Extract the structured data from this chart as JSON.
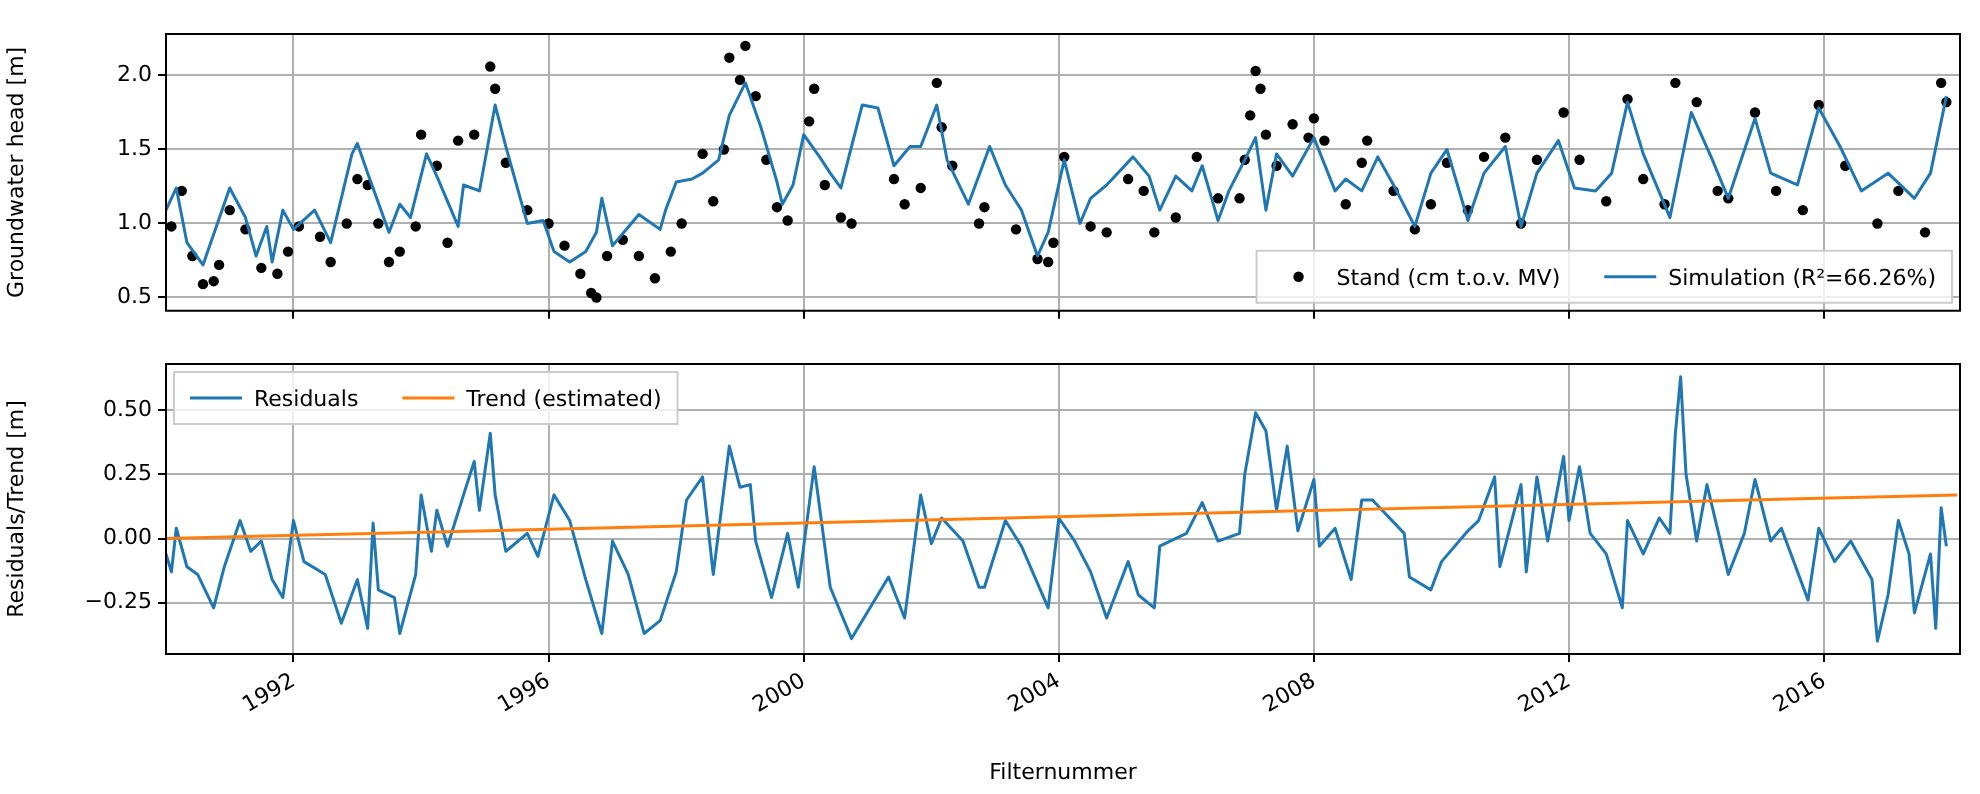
{
  "chart_data": [
    {
      "type": "line",
      "ylabel": "Groundwater head [m]",
      "xlim": [
        "1990-01-01",
        "2018-02-17"
      ],
      "xticks": [
        "1992",
        "1996",
        "2000",
        "2004",
        "2008",
        "2012",
        "2016"
      ],
      "ylim": [
        0.41,
        2.28
      ],
      "yticks": [
        {
          "value": 0.5,
          "label": "0.5"
        },
        {
          "value": 1.0,
          "label": "1.0"
        },
        {
          "value": 1.5,
          "label": "1.5"
        },
        {
          "value": 2.0,
          "label": "2.0"
        }
      ],
      "grid": true,
      "legend": "bottom right",
      "tick_labels": "y",
      "series": [
        {
          "type": "scatter",
          "marker": "circle",
          "name": "Stand (cm t.o.v. MV)",
          "color": "#000000",
          "x": [
            "1990-02",
            "1990-04",
            "1990-06",
            "1990-08",
            "1990-10",
            "1990-11",
            "1991-01",
            "1991-04",
            "1991-07",
            "1991-10",
            "1991-12",
            "1992-02",
            "1992-06",
            "1992-08",
            "1992-11",
            "1993-01",
            "1993-03",
            "1993-05",
            "1993-07",
            "1993-09",
            "1993-12",
            "1994-01",
            "1994-04",
            "1994-06",
            "1994-08",
            "1994-11",
            "1995-02",
            "1995-03",
            "1995-05",
            "1995-09",
            "1996-01",
            "1996-04",
            "1996-07",
            "1996-09",
            "1996-10",
            "1996-12",
            "1997-03",
            "1997-06",
            "1997-09",
            "1997-12",
            "1998-02",
            "1998-06",
            "1998-08",
            "1998-10",
            "1998-11",
            "1999-01",
            "1999-02",
            "1999-04",
            "1999-06",
            "1999-08",
            "1999-10",
            "2000-02",
            "2000-03",
            "2000-05",
            "2000-08",
            "2000-10",
            "2001-06",
            "2001-08",
            "2001-11",
            "2002-02",
            "2002-03",
            "2002-05",
            "2002-10",
            "2002-11",
            "2003-05",
            "2003-09",
            "2003-11",
            "2003-12",
            "2004-02",
            "2004-07",
            "2004-10",
            "2005-02",
            "2005-05",
            "2005-07",
            "2005-11",
            "2006-03",
            "2006-07",
            "2006-11",
            "2006-12",
            "2007-01",
            "2007-02",
            "2007-03",
            "2007-04",
            "2007-06",
            "2007-09",
            "2007-12",
            "2008-01",
            "2008-03",
            "2008-07",
            "2008-10",
            "2008-11",
            "2009-04",
            "2009-08",
            "2009-11",
            "2010-02",
            "2010-06",
            "2010-09",
            "2011-01",
            "2011-04",
            "2011-07",
            "2011-12",
            "2012-03",
            "2012-08",
            "2012-12",
            "2013-03",
            "2013-07",
            "2013-09",
            "2014-01",
            "2014-05",
            "2014-07",
            "2014-12",
            "2015-04",
            "2015-09",
            "2015-12",
            "2016-05",
            "2016-11",
            "2017-03",
            "2017-08",
            "2017-11",
            "2017-12"
          ],
          "values": [
            0.98,
            1.22,
            0.78,
            0.59,
            0.61,
            0.72,
            1.09,
            0.96,
            0.7,
            0.66,
            0.81,
            0.98,
            0.91,
            0.74,
            1.0,
            1.3,
            1.26,
            1.0,
            0.74,
            0.81,
            0.98,
            1.6,
            1.39,
            0.87,
            1.56,
            1.6,
            2.06,
            1.91,
            1.41,
            1.09,
            1.0,
            0.85,
            0.66,
            0.53,
            0.5,
            0.78,
            0.89,
            0.78,
            0.63,
            0.81,
            1.0,
            1.47,
            1.15,
            1.5,
            2.12,
            1.97,
            2.2,
            1.86,
            1.43,
            1.11,
            1.02,
            1.69,
            1.91,
            1.26,
            1.04,
            1.0,
            1.3,
            1.13,
            1.24,
            1.95,
            1.65,
            1.39,
            1.0,
            1.11,
            0.96,
            0.76,
            0.74,
            0.87,
            1.45,
            0.98,
            0.94,
            1.3,
            1.22,
            0.94,
            1.04,
            1.45,
            1.17,
            1.17,
            1.43,
            1.73,
            2.03,
            1.91,
            1.6,
            1.39,
            1.67,
            1.58,
            1.71,
            1.56,
            1.13,
            1.41,
            1.56,
            1.22,
            0.96,
            1.13,
            1.41,
            1.09,
            1.45,
            1.58,
            1.0,
            1.43,
            1.75,
            1.43,
            1.15,
            1.84,
            1.3,
            1.13,
            1.95,
            1.82,
            1.22,
            1.17,
            1.75,
            1.22,
            1.09,
            1.8,
            1.39,
            1.0,
            1.22,
            0.94,
            1.95,
            1.82
          ]
        },
        {
          "type": "line",
          "name": "Simulation (R²=66.26%)",
          "color": "#1f77b4",
          "x": [
            "1990-01",
            "1990-03",
            "1990-05",
            "1990-08",
            "1991-01",
            "1991-04",
            "1991-06",
            "1991-08",
            "1991-09",
            "1991-11",
            "1992-01",
            "1992-05",
            "1992-08",
            "1992-12",
            "1993-01",
            "1993-03",
            "1993-07",
            "1993-09",
            "1993-11",
            "1994-02",
            "1994-04",
            "1994-08",
            "1994-09",
            "1994-12",
            "1995-03",
            "1995-05",
            "1995-09",
            "1995-12",
            "1996-02",
            "1996-05",
            "1996-08",
            "1996-10",
            "1996-11",
            "1997-01",
            "1997-06",
            "1997-10",
            "1997-11",
            "1998-01",
            "1998-04",
            "1998-06",
            "1998-09",
            "1998-11",
            "1999-02",
            "1999-05",
            "1999-08",
            "1999-09",
            "1999-11",
            "2000-01",
            "2000-04",
            "2000-06",
            "2000-08",
            "2000-12",
            "2001-03",
            "2001-06",
            "2001-09",
            "2001-11",
            "2002-02",
            "2002-04",
            "2002-08",
            "2002-12",
            "2003-03",
            "2003-06",
            "2003-09",
            "2003-11",
            "2004-02",
            "2004-05",
            "2004-07",
            "2004-10",
            "2005-03",
            "2005-06",
            "2005-08",
            "2005-11",
            "2006-02",
            "2006-04",
            "2006-07",
            "2006-09",
            "2006-12",
            "2007-02",
            "2007-04",
            "2007-06",
            "2007-09",
            "2008-01",
            "2008-05",
            "2008-07",
            "2008-10",
            "2009-01",
            "2009-04",
            "2009-08",
            "2009-11",
            "2010-02",
            "2010-06",
            "2010-09",
            "2011-01",
            "2011-04",
            "2011-07",
            "2011-11",
            "2012-02",
            "2012-06",
            "2012-09",
            "2012-12",
            "2013-03",
            "2013-08",
            "2013-12",
            "2014-04",
            "2014-07",
            "2014-12",
            "2015-03",
            "2015-08",
            "2015-12",
            "2016-04",
            "2016-08",
            "2017-01",
            "2017-06",
            "2017-09",
            "2017-12"
          ],
          "values": [
            1.09,
            1.24,
            0.87,
            0.72,
            1.24,
            1.04,
            0.78,
            0.98,
            0.74,
            1.09,
            0.96,
            1.09,
            0.87,
            1.47,
            1.54,
            1.34,
            0.94,
            1.13,
            1.04,
            1.47,
            1.32,
            0.98,
            1.26,
            1.22,
            1.8,
            1.52,
            1.0,
            1.02,
            0.81,
            0.74,
            0.81,
            0.94,
            1.17,
            0.85,
            1.06,
            0.96,
            1.09,
            1.28,
            1.3,
            1.34,
            1.43,
            1.73,
            1.95,
            1.65,
            1.28,
            1.13,
            1.26,
            1.6,
            1.45,
            1.34,
            1.24,
            1.8,
            1.78,
            1.39,
            1.52,
            1.52,
            1.8,
            1.43,
            1.13,
            1.52,
            1.26,
            1.09,
            0.78,
            0.94,
            1.43,
            1.0,
            1.17,
            1.26,
            1.45,
            1.32,
            1.09,
            1.32,
            1.22,
            1.39,
            1.02,
            1.22,
            1.43,
            1.58,
            1.09,
            1.47,
            1.32,
            1.58,
            1.22,
            1.3,
            1.22,
            1.45,
            1.26,
            0.98,
            1.34,
            1.5,
            1.02,
            1.34,
            1.52,
            0.98,
            1.34,
            1.56,
            1.24,
            1.22,
            1.34,
            1.82,
            1.47,
            1.04,
            1.75,
            1.43,
            1.17,
            1.71,
            1.34,
            1.26,
            1.78,
            1.52,
            1.22,
            1.34,
            1.17,
            1.34,
            1.86
          ]
        }
      ]
    },
    {
      "type": "line",
      "ylabel": "Residuals/Trend [m]",
      "xlabel": "Filternummer",
      "xlim": [
        "1990-01-01",
        "2018-02-17"
      ],
      "xticks": [
        "1992",
        "1996",
        "2000",
        "2004",
        "2008",
        "2012",
        "2016"
      ],
      "ylim": [
        -0.45,
        0.68
      ],
      "yticks": [
        {
          "value": -0.25,
          "label": "−0.25"
        },
        {
          "value": 0,
          "label": "0.00"
        },
        {
          "value": 0.25,
          "label": "0.25"
        },
        {
          "value": 0.5,
          "label": "0.50"
        }
      ],
      "grid": true,
      "legend": "top left",
      "series": [
        {
          "type": "line",
          "name": "Residuals",
          "color": "#1f77b4",
          "x": [
            "1990-01",
            "1990-02",
            "1990-03",
            "1990-05",
            "1990-07",
            "1990-10",
            "1990-12",
            "1991-03",
            "1991-05",
            "1991-07",
            "1991-09",
            "1991-11",
            "1992-01",
            "1992-03",
            "1992-07",
            "1992-10",
            "1993-01",
            "1993-03",
            "1993-04",
            "1993-05",
            "1993-08",
            "1993-09",
            "1993-12",
            "1994-01",
            "1994-03",
            "1994-04",
            "1994-06",
            "1994-09",
            "1994-11",
            "1994-12",
            "1995-02",
            "1995-03",
            "1995-05",
            "1995-09",
            "1995-11",
            "1996-02",
            "1996-05",
            "1996-08",
            "1996-11",
            "1997-01",
            "1997-04",
            "1997-07",
            "1997-10",
            "1998-01",
            "1998-03",
            "1998-06",
            "1998-08",
            "1998-11",
            "1999-01",
            "1999-03",
            "1999-04",
            "1999-07",
            "1999-10",
            "1999-12",
            "2000-03",
            "2000-06",
            "2000-10",
            "2001-05",
            "2001-08",
            "2001-11",
            "2002-01",
            "2002-03",
            "2002-07",
            "2002-10",
            "2002-11",
            "2003-03",
            "2003-06",
            "2003-11",
            "2004-01",
            "2004-04",
            "2004-07",
            "2004-10",
            "2005-02",
            "2005-04",
            "2005-07",
            "2005-08",
            "2006-01",
            "2006-04",
            "2006-07",
            "2006-11",
            "2006-12",
            "2007-02",
            "2007-04",
            "2007-06",
            "2007-08",
            "2007-10",
            "2008-01",
            "2008-02",
            "2008-05",
            "2008-08",
            "2008-10",
            "2008-12",
            "2009-06",
            "2009-07",
            "2009-11",
            "2010-01",
            "2010-06",
            "2010-08",
            "2010-11",
            "2010-12",
            "2011-04",
            "2011-05",
            "2011-07",
            "2011-09",
            "2011-12",
            "2012-01",
            "2012-03",
            "2012-05",
            "2012-08",
            "2012-11",
            "2012-12",
            "2013-03",
            "2013-06",
            "2013-08",
            "2013-09",
            "2013-10",
            "2013-11",
            "2014-01",
            "2014-03",
            "2014-07",
            "2014-10",
            "2014-12",
            "2015-03",
            "2015-05",
            "2015-10",
            "2015-12",
            "2016-03",
            "2016-06",
            "2016-10",
            "2016-11",
            "2017-01",
            "2017-03",
            "2017-05",
            "2017-06",
            "2017-09",
            "2017-10",
            "2017-11",
            "2017-12"
          ],
          "values": [
            -0.06,
            -0.13,
            0.04,
            -0.11,
            -0.14,
            -0.27,
            -0.11,
            0.07,
            -0.05,
            -0.01,
            -0.16,
            -0.23,
            0.07,
            -0.09,
            -0.14,
            -0.33,
            -0.16,
            -0.35,
            0.06,
            -0.2,
            -0.23,
            -0.37,
            -0.14,
            0.17,
            -0.05,
            0.11,
            -0.03,
            0.17,
            0.3,
            0.11,
            0.41,
            0.17,
            -0.05,
            0.02,
            -0.07,
            0.17,
            0.07,
            -0.16,
            -0.37,
            -0.01,
            -0.14,
            -0.37,
            -0.32,
            -0.13,
            0.15,
            0.24,
            -0.14,
            0.36,
            0.2,
            0.21,
            -0.01,
            -0.23,
            0.02,
            -0.19,
            0.28,
            -0.19,
            -0.39,
            -0.15,
            -0.31,
            0.17,
            -0.02,
            0.08,
            -0.01,
            -0.19,
            -0.19,
            0.07,
            -0.03,
            -0.27,
            0.08,
            -0.01,
            -0.13,
            -0.31,
            -0.09,
            -0.22,
            -0.27,
            -0.03,
            0.02,
            0.14,
            -0.01,
            0.02,
            0.25,
            0.49,
            0.42,
            0.11,
            0.36,
            0.03,
            0.23,
            -0.03,
            0.04,
            -0.16,
            0.15,
            0.15,
            0.02,
            -0.15,
            -0.2,
            -0.09,
            0.03,
            0.07,
            0.24,
            -0.11,
            0.21,
            -0.13,
            0.24,
            -0.01,
            0.32,
            0.07,
            0.28,
            0.02,
            -0.06,
            -0.27,
            0.07,
            -0.06,
            0.08,
            0.02,
            0.41,
            0.63,
            0.25,
            -0.01,
            0.21,
            -0.14,
            0.02,
            0.23,
            -0.01,
            0.04,
            -0.24,
            0.04,
            -0.09,
            -0.01,
            -0.16,
            -0.4,
            -0.22,
            0.07,
            -0.06,
            -0.29,
            -0.06,
            -0.35,
            0.12,
            -0.03
          ]
        },
        {
          "type": "line",
          "name": "Trend (estimated)",
          "color": "#ff7f0e",
          "x": [
            "1990-01",
            "2018-02"
          ],
          "values": [
            0.0,
            0.17
          ]
        }
      ]
    }
  ]
}
